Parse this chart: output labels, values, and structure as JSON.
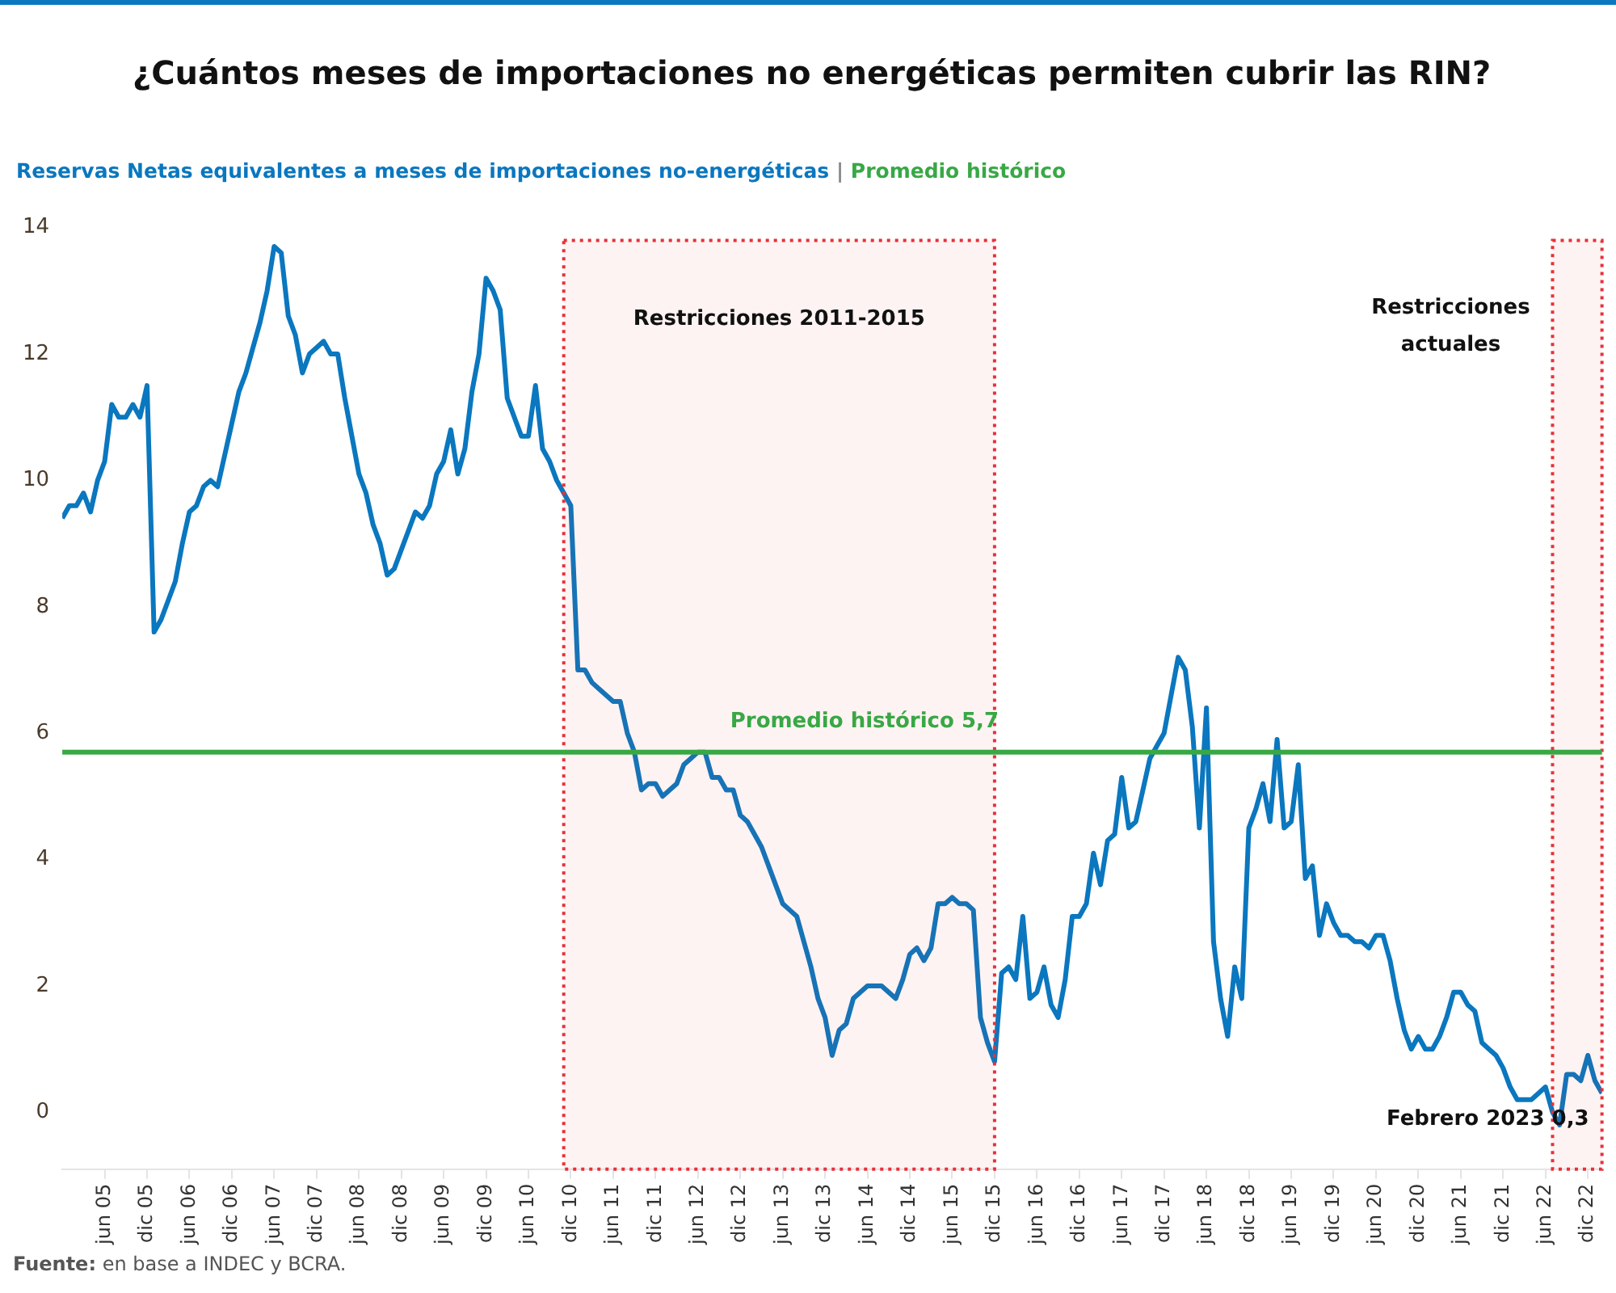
{
  "chart_data": {
    "type": "line",
    "title": "¿Cuántos meses de importaciones no energéticas permiten cubrir las RIN?",
    "subtitle": "Reservas Netas equivalentes a meses de importaciones no-energéticas | Promedio histórico",
    "marker": "none",
    "x": [
      "2004-12",
      "2005-01",
      "2005-02",
      "2005-03",
      "2005-04",
      "2005-05",
      "2005-06",
      "2005-07",
      "2005-08",
      "2005-09",
      "2005-10",
      "2005-11",
      "2005-12",
      "2006-01",
      "2006-02",
      "2006-03",
      "2006-04",
      "2006-05",
      "2006-06",
      "2006-07",
      "2006-08",
      "2006-09",
      "2006-10",
      "2006-11",
      "2006-12",
      "2007-01",
      "2007-02",
      "2007-03",
      "2007-04",
      "2007-05",
      "2007-06",
      "2007-07",
      "2007-08",
      "2007-09",
      "2007-10",
      "2007-11",
      "2007-12",
      "2008-01",
      "2008-02",
      "2008-03",
      "2008-04",
      "2008-05",
      "2008-06",
      "2008-07",
      "2008-08",
      "2008-09",
      "2008-10",
      "2008-11",
      "2008-12",
      "2009-01",
      "2009-02",
      "2009-03",
      "2009-04",
      "2009-05",
      "2009-06",
      "2009-07",
      "2009-08",
      "2009-09",
      "2009-10",
      "2009-11",
      "2009-12",
      "2010-01",
      "2010-02",
      "2010-03",
      "2010-04",
      "2010-05",
      "2010-06",
      "2010-07",
      "2010-08",
      "2010-09",
      "2010-10",
      "2010-11",
      "2010-12",
      "2011-01",
      "2011-02",
      "2011-03",
      "2011-04",
      "2011-05",
      "2011-06",
      "2011-07",
      "2011-08",
      "2011-09",
      "2011-10",
      "2011-11",
      "2011-12",
      "2012-01",
      "2012-02",
      "2012-03",
      "2012-04",
      "2012-05",
      "2012-06",
      "2012-07",
      "2012-08",
      "2012-09",
      "2012-10",
      "2012-11",
      "2012-12",
      "2013-01",
      "2013-02",
      "2013-03",
      "2013-04",
      "2013-05",
      "2013-06",
      "2013-07",
      "2013-08",
      "2013-09",
      "2013-10",
      "2013-11",
      "2013-12",
      "2014-01",
      "2014-02",
      "2014-03",
      "2014-04",
      "2014-05",
      "2014-06",
      "2014-07",
      "2014-08",
      "2014-09",
      "2014-10",
      "2014-11",
      "2014-12",
      "2015-01",
      "2015-02",
      "2015-03",
      "2015-04",
      "2015-05",
      "2015-06",
      "2015-07",
      "2015-08",
      "2015-09",
      "2015-10",
      "2015-11",
      "2015-12",
      "2016-01",
      "2016-02",
      "2016-03",
      "2016-04",
      "2016-05",
      "2016-06",
      "2016-07",
      "2016-08",
      "2016-09",
      "2016-10",
      "2016-11",
      "2016-12",
      "2017-01",
      "2017-02",
      "2017-03",
      "2017-04",
      "2017-05",
      "2017-06",
      "2017-07",
      "2017-08",
      "2017-09",
      "2017-10",
      "2017-11",
      "2017-12",
      "2018-01",
      "2018-02",
      "2018-03",
      "2018-04",
      "2018-05",
      "2018-06",
      "2018-07",
      "2018-08",
      "2018-09",
      "2018-10",
      "2018-11",
      "2018-12",
      "2019-01",
      "2019-02",
      "2019-03",
      "2019-04",
      "2019-05",
      "2019-06",
      "2019-07",
      "2019-08",
      "2019-09",
      "2019-10",
      "2019-11",
      "2019-12",
      "2020-01",
      "2020-02",
      "2020-03",
      "2020-04",
      "2020-05",
      "2020-06",
      "2020-07",
      "2020-08",
      "2020-09",
      "2020-10",
      "2020-11",
      "2020-12",
      "2021-01",
      "2021-02",
      "2021-03",
      "2021-04",
      "2021-05",
      "2021-06",
      "2021-07",
      "2021-08",
      "2021-09",
      "2021-10",
      "2021-11",
      "2021-12",
      "2022-01",
      "2022-02",
      "2022-03",
      "2022-04",
      "2022-05",
      "2022-06",
      "2022-07",
      "2022-08",
      "2022-09",
      "2022-10",
      "2022-11",
      "2022-12",
      "2023-01",
      "2023-02"
    ],
    "series": [
      {
        "color": "#0a77bf",
        "values": [
          9.4,
          9.6,
          9.6,
          9.8,
          9.5,
          10.0,
          10.3,
          11.2,
          11.0,
          11.0,
          11.2,
          11.0,
          11.5,
          7.6,
          7.8,
          8.1,
          8.4,
          9.0,
          9.5,
          9.6,
          9.9,
          10.0,
          9.9,
          10.4,
          10.9,
          11.4,
          11.7,
          12.1,
          12.5,
          13.0,
          13.7,
          13.6,
          12.6,
          12.3,
          11.7,
          12.0,
          12.1,
          12.2,
          12.0,
          12.0,
          11.3,
          10.7,
          10.1,
          9.8,
          9.3,
          9.0,
          8.5,
          8.6,
          8.9,
          9.2,
          9.5,
          9.4,
          9.6,
          10.1,
          10.3,
          10.8,
          10.1,
          10.5,
          11.4,
          12.0,
          13.2,
          13.0,
          12.7,
          11.3,
          11.0,
          10.7,
          10.7,
          11.5,
          10.5,
          10.3,
          10.0,
          9.8,
          9.6,
          7.0,
          7.0,
          6.8,
          6.7,
          6.6,
          6.5,
          6.5,
          6.0,
          5.7,
          5.1,
          5.2,
          5.2,
          5.0,
          5.1,
          5.2,
          5.5,
          5.6,
          5.7,
          5.7,
          5.3,
          5.3,
          5.1,
          5.1,
          4.7,
          4.6,
          4.4,
          4.2,
          3.9,
          3.6,
          3.3,
          3.2,
          3.1,
          2.7,
          2.3,
          1.8,
          1.5,
          0.9,
          1.3,
          1.4,
          1.8,
          1.9,
          2.0,
          2.0,
          2.0,
          1.9,
          1.8,
          2.1,
          2.5,
          2.6,
          2.4,
          2.6,
          3.3,
          3.3,
          3.4,
          3.3,
          3.3,
          3.2,
          1.5,
          1.1,
          0.8,
          2.2,
          2.3,
          2.1,
          3.1,
          1.8,
          1.9,
          2.3,
          1.7,
          1.5,
          2.1,
          3.1,
          3.1,
          3.3,
          4.1,
          3.6,
          4.3,
          4.4,
          5.3,
          4.5,
          4.6,
          5.1,
          5.6,
          5.8,
          6.0,
          6.6,
          7.2,
          7.0,
          6.1,
          4.5,
          6.4,
          2.7,
          1.8,
          1.2,
          2.3,
          1.8,
          4.5,
          4.8,
          5.2,
          4.6,
          5.9,
          4.5,
          4.6,
          5.5,
          3.7,
          3.9,
          2.8,
          3.3,
          3.0,
          2.8,
          2.8,
          2.7,
          2.7,
          2.6,
          2.8,
          2.8,
          2.4,
          1.8,
          1.3,
          1.0,
          1.2,
          1.0,
          1.0,
          1.2,
          1.5,
          1.9,
          1.9,
          1.7,
          1.6,
          1.1,
          1.0,
          0.9,
          0.7,
          0.4,
          0.2,
          0.2,
          0.2,
          0.3,
          0.4,
          0.0,
          -0.2,
          0.6,
          0.6,
          0.5,
          0.9,
          0.5,
          0.3
        ]
      }
    ],
    "xlim": [
      "2004-12",
      "2023-02"
    ],
    "xticks": [
      {
        "value": "2005-06",
        "label": "jun 05"
      },
      {
        "value": "2005-12",
        "label": "dic 05"
      },
      {
        "value": "2006-06",
        "label": "jun 06"
      },
      {
        "value": "2006-12",
        "label": "dic 06"
      },
      {
        "value": "2007-06",
        "label": "jun 07"
      },
      {
        "value": "2007-12",
        "label": "dic 07"
      },
      {
        "value": "2008-06",
        "label": "jun 08"
      },
      {
        "value": "2008-12",
        "label": "dic 08"
      },
      {
        "value": "2009-06",
        "label": "jun 09"
      },
      {
        "value": "2009-12",
        "label": "dic 09"
      },
      {
        "value": "2010-06",
        "label": "jun 10"
      },
      {
        "value": "2010-12",
        "label": "dic 10"
      },
      {
        "value": "2011-06",
        "label": "jun 11"
      },
      {
        "value": "2011-12",
        "label": "dic 11"
      },
      {
        "value": "2012-06",
        "label": "jun 12"
      },
      {
        "value": "2012-12",
        "label": "dic 12"
      },
      {
        "value": "2013-06",
        "label": "jun 13"
      },
      {
        "value": "2013-12",
        "label": "dic 13"
      },
      {
        "value": "2014-06",
        "label": "jun 14"
      },
      {
        "value": "2014-12",
        "label": "dic 14"
      },
      {
        "value": "2015-06",
        "label": "jun 15"
      },
      {
        "value": "2015-12",
        "label": "dic 15"
      },
      {
        "value": "2016-06",
        "label": "jun 16"
      },
      {
        "value": "2016-12",
        "label": "dic 16"
      },
      {
        "value": "2017-06",
        "label": "jun 17"
      },
      {
        "value": "2017-12",
        "label": "dic 17"
      },
      {
        "value": "2018-06",
        "label": "jun 18"
      },
      {
        "value": "2018-12",
        "label": "dic 18"
      },
      {
        "value": "2019-06",
        "label": "jun 19"
      },
      {
        "value": "2019-12",
        "label": "dic 19"
      },
      {
        "value": "2020-06",
        "label": "jun 20"
      },
      {
        "value": "2020-12",
        "label": "dic 20"
      },
      {
        "value": "2021-06",
        "label": "jun 21"
      },
      {
        "value": "2021-12",
        "label": "dic 21"
      },
      {
        "value": "2022-06",
        "label": "jun 22"
      },
      {
        "value": "2022-12",
        "label": "dic 22"
      }
    ],
    "ylim": [
      -0.9,
      14
    ],
    "yticks": [
      0,
      2,
      4,
      6,
      8,
      10,
      12,
      14
    ],
    "ref_lines": [
      {
        "axis": "y",
        "value": 5.7,
        "label": "Promedio histórico 5,7",
        "color": "#38a845"
      }
    ],
    "bands": [
      {
        "axis": "x",
        "from": "2010-11",
        "to": "2015-12",
        "label": "Restricciones 2011-2015",
        "color": "#e8303a"
      },
      {
        "axis": "x",
        "from": "2022-07",
        "to": "2023-02",
        "label": "Restricciones actuales",
        "color": "#e8303a"
      }
    ],
    "annotations": [
      {
        "text": "Febrero 2023 0,3",
        "x": "2023-02",
        "y": 0.3
      },
      "Fuente: en base a INDEC y BCRA."
    ]
  }
}
